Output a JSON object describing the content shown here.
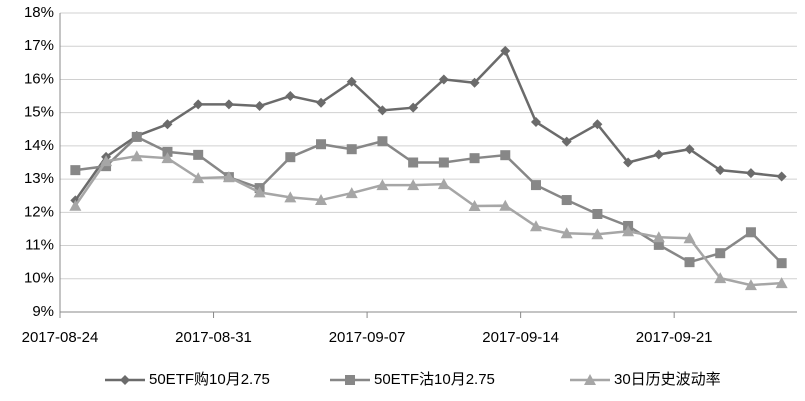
{
  "chart_data": {
    "type": "line",
    "categories": [
      "2017-08-24",
      null,
      null,
      null,
      null,
      "2017-08-31",
      null,
      null,
      null,
      null,
      "2017-09-07",
      null,
      null,
      null,
      null,
      "2017-09-14",
      null,
      null,
      null,
      null,
      "2017-09-21",
      null,
      null,
      null
    ],
    "series": [
      {
        "name": "50ETF购10月2.75",
        "color": "#6b6b6b",
        "marker": "diamond",
        "values": [
          12.36,
          13.67,
          14.3,
          14.65,
          15.25,
          15.25,
          15.2,
          15.5,
          15.3,
          15.93,
          15.07,
          15.15,
          16.0,
          15.9,
          16.86,
          14.72,
          14.13,
          14.65,
          13.5,
          13.74,
          13.9,
          13.27,
          13.18,
          13.08
        ]
      },
      {
        "name": "50ETF沽10月2.75",
        "color": "#878787",
        "marker": "square",
        "values": [
          13.27,
          13.39,
          14.27,
          13.82,
          13.73,
          13.06,
          12.73,
          13.66,
          14.05,
          13.9,
          14.14,
          13.5,
          13.5,
          13.63,
          13.72,
          12.82,
          12.37,
          11.95,
          11.59,
          11.02,
          10.5,
          10.77,
          11.4,
          10.47
        ]
      },
      {
        "name": "30日历史波动率",
        "color": "#a6a6a6",
        "marker": "triangle",
        "values": [
          12.2,
          13.54,
          13.69,
          13.63,
          13.03,
          13.06,
          12.6,
          12.45,
          12.37,
          12.58,
          12.82,
          12.82,
          12.85,
          12.19,
          12.2,
          11.58,
          11.37,
          11.34,
          11.43,
          11.25,
          11.22,
          10.02,
          9.81,
          9.87
        ]
      }
    ],
    "ylim": [
      9,
      18
    ],
    "yticks": [
      {
        "value": 9,
        "label": "9%"
      },
      {
        "value": 10,
        "label": "10%"
      },
      {
        "value": 11,
        "label": "11%"
      },
      {
        "value": 12,
        "label": "12%"
      },
      {
        "value": 13,
        "label": "13%"
      },
      {
        "value": 14,
        "label": "14%"
      },
      {
        "value": 15,
        "label": "15%"
      },
      {
        "value": 16,
        "label": "16%"
      },
      {
        "value": 17,
        "label": "17%"
      },
      {
        "value": 18,
        "label": "18%"
      }
    ],
    "grid": true,
    "legend": "bottom"
  }
}
